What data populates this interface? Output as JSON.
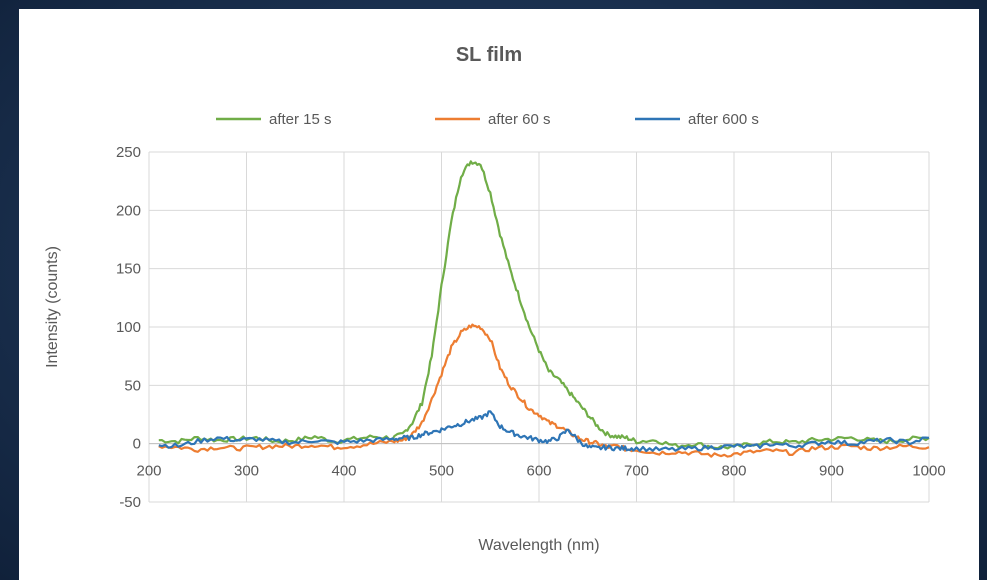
{
  "chart_data": {
    "type": "line",
    "title": "SL film",
    "xlabel": "Wavelength (nm)",
    "ylabel": "Intensity (counts)",
    "xlim": [
      200,
      1000
    ],
    "ylim": [
      -50,
      250
    ],
    "x_ticks": [
      200,
      300,
      400,
      500,
      600,
      700,
      800,
      900,
      1000
    ],
    "y_ticks": [
      -50,
      0,
      50,
      100,
      150,
      200,
      250
    ],
    "grid": "vertical and horizontal",
    "legend_position": "top",
    "x": [
      210,
      230,
      250,
      270,
      290,
      310,
      330,
      350,
      370,
      390,
      410,
      430,
      450,
      460,
      470,
      480,
      490,
      500,
      510,
      520,
      530,
      540,
      550,
      560,
      570,
      580,
      590,
      600,
      610,
      620,
      630,
      640,
      650,
      660,
      670,
      680,
      690,
      700,
      720,
      740,
      760,
      780,
      800,
      820,
      840,
      860,
      880,
      900,
      920,
      940,
      960,
      980,
      1000
    ],
    "series": [
      {
        "name": "after 15 s",
        "color": "#70ad47",
        "values": [
          3,
          2,
          5,
          3,
          4,
          5,
          2,
          3,
          6,
          2,
          4,
          6,
          5,
          8,
          18,
          35,
          75,
          135,
          190,
          230,
          242,
          240,
          215,
          180,
          150,
          125,
          100,
          80,
          62,
          55,
          45,
          35,
          25,
          15,
          8,
          6,
          5,
          2,
          3,
          -2,
          0,
          -3,
          -3,
          0,
          2,
          1,
          3,
          4,
          5,
          3,
          2,
          4,
          5
        ]
      },
      {
        "name": "after 60 s",
        "color": "#ed7d31",
        "values": [
          -2,
          -3,
          -5,
          -3,
          -4,
          -3,
          -2,
          -2,
          -1,
          -3,
          -2,
          0,
          2,
          3,
          8,
          18,
          38,
          60,
          82,
          95,
          101,
          100,
          90,
          65,
          50,
          40,
          30,
          25,
          18,
          15,
          10,
          5,
          2,
          0,
          -3,
          -2,
          -5,
          -5,
          -8,
          -7,
          -8,
          -10,
          -9,
          -7,
          -6,
          -8,
          -4,
          -3,
          -2,
          -4,
          -3,
          -2,
          -3
        ]
      },
      {
        "name": "after 600 s",
        "color": "#2e75b6",
        "values": [
          -1,
          -2,
          2,
          5,
          3,
          4,
          2,
          1,
          3,
          1,
          2,
          3,
          4,
          5,
          5,
          8,
          10,
          12,
          15,
          17,
          20,
          22,
          27,
          15,
          10,
          7,
          5,
          3,
          2,
          5,
          12,
          3,
          -3,
          -4,
          -3,
          -4,
          -4,
          -4,
          -5,
          -5,
          -4,
          -3,
          -2,
          -3,
          0,
          -2,
          0,
          2,
          0,
          2,
          3,
          1,
          5
        ]
      }
    ]
  }
}
